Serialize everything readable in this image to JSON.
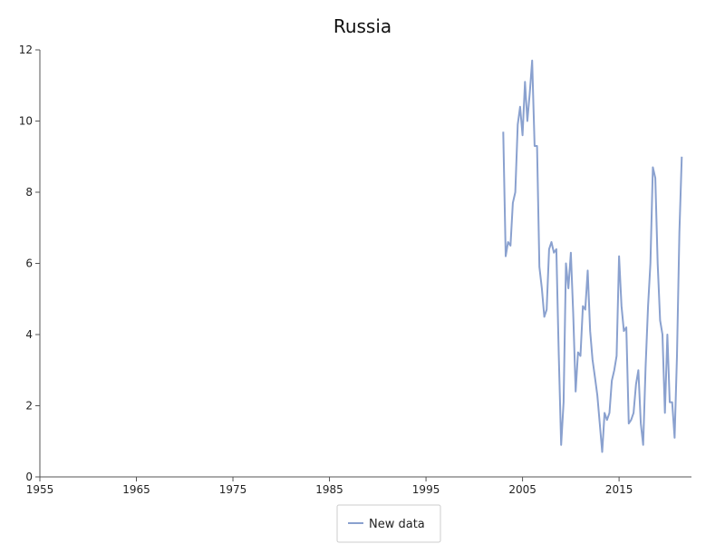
{
  "chart_data": {
    "type": "line",
    "title": "Russia",
    "xlabel": "",
    "ylabel": "",
    "xlim": [
      1955,
      2022.5
    ],
    "ylim": [
      0,
      12
    ],
    "x_ticks": [
      1955,
      1965,
      1975,
      1985,
      1995,
      2005,
      2015
    ],
    "y_ticks": [
      0,
      2,
      4,
      6,
      8,
      10,
      12
    ],
    "grid": false,
    "legend_position": "bottom-center",
    "series": [
      {
        "name": "New data",
        "color": "#8aa1cf",
        "x": [
          2003.0,
          2003.25,
          2003.5,
          2003.75,
          2004.0,
          2004.25,
          2004.5,
          2004.75,
          2005.0,
          2005.25,
          2005.5,
          2005.75,
          2006.0,
          2006.25,
          2006.5,
          2006.75,
          2007.0,
          2007.25,
          2007.5,
          2007.75,
          2008.0,
          2008.25,
          2008.5,
          2008.75,
          2009.0,
          2009.25,
          2009.5,
          2009.75,
          2010.0,
          2010.25,
          2010.5,
          2010.75,
          2011.0,
          2011.25,
          2011.5,
          2011.75,
          2012.0,
          2012.25,
          2012.5,
          2012.75,
          2013.0,
          2013.25,
          2013.5,
          2013.75,
          2014.0,
          2014.25,
          2014.5,
          2014.75,
          2015.0,
          2015.25,
          2015.5,
          2015.75,
          2016.0,
          2016.25,
          2016.5,
          2016.75,
          2017.0,
          2017.25,
          2017.5,
          2017.75,
          2018.0,
          2018.25,
          2018.5,
          2018.75,
          2019.0,
          2019.25,
          2019.5,
          2019.75,
          2020.0,
          2020.25,
          2020.5,
          2020.75,
          2021.0,
          2021.25,
          2021.5
        ],
        "y": [
          9.7,
          6.2,
          6.6,
          6.5,
          7.7,
          8.0,
          9.9,
          10.4,
          9.6,
          11.1,
          10.0,
          10.8,
          11.7,
          9.3,
          9.3,
          5.9,
          5.3,
          4.5,
          4.7,
          6.4,
          6.6,
          6.3,
          6.4,
          3.5,
          0.9,
          2.1,
          6.0,
          5.3,
          6.3,
          4.6,
          2.4,
          3.5,
          3.4,
          4.8,
          4.7,
          5.8,
          4.1,
          3.3,
          2.8,
          2.3,
          1.5,
          0.7,
          1.8,
          1.6,
          1.8,
          2.7,
          3.0,
          3.4,
          6.2,
          4.8,
          4.1,
          4.2,
          1.5,
          1.6,
          1.8,
          2.6,
          3.0,
          1.5,
          0.9,
          3.1,
          4.8,
          6.0,
          8.7,
          8.4,
          6.0,
          4.4,
          4.0,
          1.8,
          4.0,
          2.1,
          2.1,
          1.1,
          3.4,
          6.9,
          9.0
        ]
      }
    ]
  }
}
